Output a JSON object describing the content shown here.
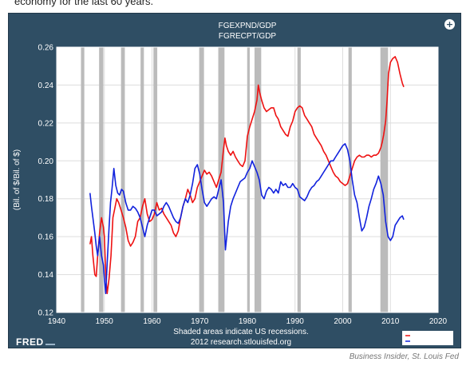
{
  "page": {
    "top_text": "economy for the last 60 years.",
    "credit": "Business Insider, St. Louis Fed",
    "zoom_icon": "zoom-in-icon",
    "fred_logo": "FRED",
    "colors": {
      "panel": "#2f4e64",
      "plot_bg": "#ffffff",
      "recession": "#bbbbbb",
      "series_red": "#ee1111",
      "series_blue": "#1122dd"
    }
  },
  "chart_data": {
    "type": "line",
    "title_lines": [
      "FGEXPND/GDP",
      "FGRECPT/GDP"
    ],
    "ylabel": "(Bil. of $/Bil. of $)",
    "xlabel_lines": [
      "Shaded areas indicate US recessions.",
      "2012 research.stlouisfed.org"
    ],
    "xlim": [
      1940,
      2020
    ],
    "ylim": [
      0.12,
      0.26
    ],
    "x_ticks": [
      1940,
      1950,
      1960,
      1970,
      1980,
      1990,
      2000,
      2010,
      2020
    ],
    "y_ticks": [
      0.12,
      0.14,
      0.16,
      0.18,
      0.2,
      0.22,
      0.24,
      0.26
    ],
    "y_tick_labels": [
      "0.12",
      "0.14",
      "0.16",
      "0.18",
      "0.20",
      "0.22",
      "0.24",
      "0.26"
    ],
    "grid": true,
    "legend": "bottom-right",
    "recessions": [
      [
        1945.1,
        1945.8
      ],
      [
        1948.9,
        1949.8
      ],
      [
        1953.5,
        1954.3
      ],
      [
        1957.6,
        1958.3
      ],
      [
        1960.3,
        1961.1
      ],
      [
        1969.9,
        1970.9
      ],
      [
        1973.9,
        1975.2
      ],
      [
        1980.0,
        1980.5
      ],
      [
        1981.5,
        1982.9
      ],
      [
        1990.5,
        1991.2
      ],
      [
        2001.2,
        2001.9
      ],
      [
        2007.9,
        2009.5
      ]
    ],
    "series": [
      {
        "color": "#ee1111",
        "x": [
          1947.0,
          1947.3,
          1947.6,
          1948.0,
          1948.3,
          1948.6,
          1949.0,
          1949.4,
          1949.8,
          1950.0,
          1950.3,
          1950.6,
          1951.0,
          1951.4,
          1951.8,
          1952.2,
          1952.6,
          1953.0,
          1953.5,
          1954.0,
          1954.5,
          1955.0,
          1955.5,
          1956.0,
          1956.5,
          1957.0,
          1957.5,
          1958.0,
          1958.5,
          1959.0,
          1959.5,
          1960.0,
          1960.5,
          1961.0,
          1961.5,
          1962.0,
          1962.5,
          1963.0,
          1963.5,
          1964.0,
          1964.5,
          1965.0,
          1965.5,
          1966.0,
          1966.5,
          1967.0,
          1967.5,
          1968.0,
          1968.5,
          1969.0,
          1969.5,
          1970.0,
          1970.5,
          1971.0,
          1971.5,
          1972.0,
          1972.5,
          1973.0,
          1973.5,
          1974.0,
          1974.5,
          1975.0,
          1975.3,
          1975.6,
          1976.0,
          1976.5,
          1977.0,
          1977.5,
          1978.0,
          1978.5,
          1979.0,
          1979.5,
          1980.0,
          1980.5,
          1981.0,
          1981.5,
          1982.0,
          1982.3,
          1982.6,
          1983.0,
          1983.5,
          1984.0,
          1984.5,
          1985.0,
          1985.5,
          1986.0,
          1986.5,
          1987.0,
          1987.5,
          1988.0,
          1988.5,
          1989.0,
          1989.5,
          1990.0,
          1990.5,
          1991.0,
          1991.5,
          1992.0,
          1992.5,
          1993.0,
          1993.5,
          1994.0,
          1994.5,
          1995.0,
          1995.5,
          1996.0,
          1996.5,
          1997.0,
          1997.5,
          1998.0,
          1998.5,
          1999.0,
          1999.5,
          2000.0,
          2000.5,
          2001.0,
          2001.5,
          2002.0,
          2002.5,
          2003.0,
          2003.5,
          2004.0,
          2004.5,
          2005.0,
          2005.5,
          2006.0,
          2006.5,
          2007.0,
          2007.5,
          2008.0,
          2008.3,
          2008.6,
          2009.0,
          2009.3,
          2009.6,
          2010.0,
          2010.5,
          2011.0,
          2011.5,
          2012.0,
          2012.5,
          2012.8
        ],
        "y": [
          0.156,
          0.16,
          0.15,
          0.14,
          0.139,
          0.15,
          0.162,
          0.17,
          0.165,
          0.16,
          0.14,
          0.13,
          0.138,
          0.15,
          0.17,
          0.175,
          0.18,
          0.178,
          0.174,
          0.17,
          0.165,
          0.158,
          0.155,
          0.157,
          0.16,
          0.168,
          0.17,
          0.176,
          0.18,
          0.172,
          0.168,
          0.169,
          0.172,
          0.178,
          0.174,
          0.175,
          0.172,
          0.17,
          0.168,
          0.166,
          0.162,
          0.16,
          0.163,
          0.17,
          0.176,
          0.18,
          0.185,
          0.182,
          0.178,
          0.18,
          0.186,
          0.189,
          0.192,
          0.195,
          0.193,
          0.194,
          0.192,
          0.189,
          0.186,
          0.19,
          0.194,
          0.206,
          0.212,
          0.208,
          0.205,
          0.203,
          0.205,
          0.202,
          0.2,
          0.198,
          0.197,
          0.2,
          0.213,
          0.218,
          0.222,
          0.226,
          0.232,
          0.24,
          0.236,
          0.232,
          0.228,
          0.226,
          0.227,
          0.228,
          0.228,
          0.224,
          0.222,
          0.218,
          0.216,
          0.214,
          0.213,
          0.218,
          0.221,
          0.226,
          0.228,
          0.229,
          0.228,
          0.224,
          0.222,
          0.22,
          0.218,
          0.214,
          0.212,
          0.21,
          0.208,
          0.205,
          0.203,
          0.2,
          0.197,
          0.194,
          0.192,
          0.191,
          0.189,
          0.188,
          0.187,
          0.188,
          0.192,
          0.196,
          0.2,
          0.202,
          0.203,
          0.202,
          0.202,
          0.203,
          0.203,
          0.202,
          0.203,
          0.203,
          0.204,
          0.207,
          0.21,
          0.214,
          0.221,
          0.232,
          0.246,
          0.252,
          0.254,
          0.255,
          0.252,
          0.246,
          0.241,
          0.239
        ]
      },
      {
        "color": "#1122dd",
        "x": [
          1947.0,
          1947.3,
          1947.6,
          1948.0,
          1948.3,
          1948.6,
          1949.0,
          1949.4,
          1949.8,
          1950.0,
          1950.3,
          1950.6,
          1951.0,
          1951.3,
          1951.6,
          1952.0,
          1952.4,
          1952.8,
          1953.2,
          1953.6,
          1954.0,
          1954.5,
          1955.0,
          1955.5,
          1956.0,
          1956.5,
          1957.0,
          1957.5,
          1958.0,
          1958.5,
          1959.0,
          1959.5,
          1960.0,
          1960.5,
          1961.0,
          1961.5,
          1962.0,
          1962.5,
          1963.0,
          1963.5,
          1964.0,
          1964.5,
          1965.0,
          1965.5,
          1966.0,
          1966.5,
          1967.0,
          1967.5,
          1968.0,
          1968.5,
          1969.0,
          1969.5,
          1970.0,
          1970.5,
          1971.0,
          1971.5,
          1972.0,
          1972.5,
          1973.0,
          1973.5,
          1974.0,
          1974.5,
          1975.0,
          1975.4,
          1976.0,
          1976.5,
          1977.0,
          1977.5,
          1978.0,
          1978.5,
          1979.0,
          1979.5,
          1980.0,
          1980.5,
          1981.0,
          1981.5,
          1982.0,
          1982.5,
          1983.0,
          1983.5,
          1984.0,
          1984.5,
          1985.0,
          1985.5,
          1986.0,
          1986.5,
          1987.0,
          1987.5,
          1988.0,
          1988.5,
          1989.0,
          1989.5,
          1990.0,
          1990.5,
          1991.0,
          1991.5,
          1992.0,
          1992.5,
          1993.0,
          1993.5,
          1994.0,
          1994.5,
          1995.0,
          1995.5,
          1996.0,
          1996.5,
          1997.0,
          1997.5,
          1998.0,
          1998.5,
          1999.0,
          1999.5,
          2000.0,
          2000.5,
          2001.0,
          2001.5,
          2002.0,
          2002.5,
          2003.0,
          2003.5,
          2004.0,
          2004.5,
          2005.0,
          2005.5,
          2006.0,
          2006.5,
          2007.0,
          2007.5,
          2008.0,
          2008.5,
          2009.0,
          2009.5,
          2010.0,
          2010.5,
          2011.0,
          2011.5,
          2012.0,
          2012.5,
          2012.8
        ],
        "y": [
          0.183,
          0.176,
          0.17,
          0.162,
          0.155,
          0.15,
          0.16,
          0.15,
          0.145,
          0.138,
          0.13,
          0.146,
          0.165,
          0.178,
          0.185,
          0.196,
          0.187,
          0.183,
          0.182,
          0.185,
          0.184,
          0.178,
          0.174,
          0.174,
          0.176,
          0.175,
          0.173,
          0.17,
          0.165,
          0.16,
          0.166,
          0.17,
          0.174,
          0.174,
          0.171,
          0.172,
          0.173,
          0.176,
          0.178,
          0.176,
          0.173,
          0.17,
          0.168,
          0.167,
          0.17,
          0.176,
          0.18,
          0.178,
          0.182,
          0.188,
          0.196,
          0.198,
          0.193,
          0.185,
          0.178,
          0.176,
          0.178,
          0.18,
          0.181,
          0.18,
          0.185,
          0.19,
          0.178,
          0.153,
          0.168,
          0.176,
          0.18,
          0.183,
          0.186,
          0.189,
          0.19,
          0.191,
          0.194,
          0.196,
          0.2,
          0.197,
          0.194,
          0.19,
          0.182,
          0.18,
          0.184,
          0.186,
          0.185,
          0.183,
          0.185,
          0.183,
          0.189,
          0.187,
          0.188,
          0.186,
          0.186,
          0.188,
          0.186,
          0.185,
          0.181,
          0.18,
          0.179,
          0.181,
          0.184,
          0.186,
          0.187,
          0.189,
          0.19,
          0.192,
          0.194,
          0.196,
          0.198,
          0.2,
          0.2,
          0.202,
          0.204,
          0.206,
          0.208,
          0.209,
          0.206,
          0.2,
          0.19,
          0.182,
          0.178,
          0.17,
          0.163,
          0.165,
          0.17,
          0.176,
          0.18,
          0.185,
          0.188,
          0.192,
          0.188,
          0.182,
          0.168,
          0.16,
          0.158,
          0.16,
          0.166,
          0.168,
          0.17,
          0.171,
          0.169
        ]
      }
    ]
  }
}
